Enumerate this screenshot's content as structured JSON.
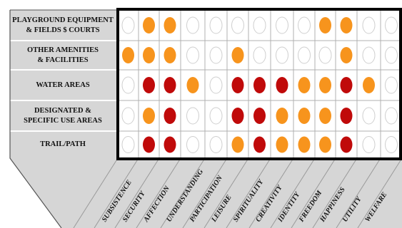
{
  "rows": [
    {
      "label": "PLAYGROUND EQUIPMENT\n& FIELDS $ COURTS",
      "cells": [
        "empty",
        "light",
        "light",
        "empty",
        "empty",
        "empty",
        "empty",
        "empty",
        "empty",
        "light",
        "light",
        "empty",
        "empty"
      ]
    },
    {
      "label": "OTHER AMENITIES\n& FACILITIES",
      "cells": [
        "light",
        "light",
        "light",
        "empty",
        "empty",
        "light",
        "empty",
        "empty",
        "empty",
        "empty",
        "light",
        "empty",
        "empty"
      ]
    },
    {
      "label": "WATER AREAS",
      "cells": [
        "empty",
        "dark",
        "dark",
        "light",
        "empty",
        "dark",
        "dark",
        "dark",
        "light",
        "light",
        "dark",
        "light",
        "empty"
      ]
    },
    {
      "label": "DESIGNATED &\nSPECIFIC USE AREAS",
      "cells": [
        "empty",
        "light",
        "dark",
        "empty",
        "empty",
        "dark",
        "dark",
        "light",
        "light",
        "light",
        "dark",
        "empty",
        "empty"
      ]
    },
    {
      "label": "TRAIL/PATH",
      "cells": [
        "empty",
        "dark",
        "dark",
        "empty",
        "empty",
        "light",
        "dark",
        "light",
        "light",
        "light",
        "dark",
        "empty",
        "empty"
      ]
    }
  ],
  "columns": [
    "SUBSISTENCE",
    "SECURITY",
    "AFFECTION",
    "UNDERSTANDING",
    "PARTICIPATION",
    "LEISURE",
    "SPIRITUALITY",
    "CREATIVITY",
    "IDENTITY",
    "FREEDOM",
    "HAPPINESS",
    "UTILITY",
    "WELFARE"
  ],
  "colors": {
    "dark": "#c00a0a",
    "light": "#f7941d",
    "empty_stroke": "#cfcfcf",
    "label_panel": "#d6d6d6",
    "grid_line": "#b0b0b0",
    "border": "#000000"
  }
}
